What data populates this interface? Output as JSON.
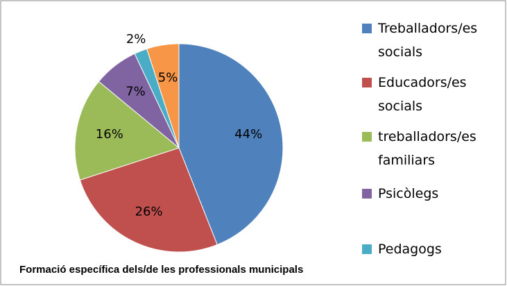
{
  "chart_data": {
    "type": "pie",
    "title": "Formació específica dels/de les professionals municipals",
    "categories": [
      "Treballadors/es socials",
      "Educadors/es socials",
      "treballadors/es familiars",
      "Psicòlegs",
      "Pedagogs",
      null
    ],
    "values": [
      44,
      26,
      16,
      7,
      2,
      5
    ],
    "value_labels": [
      "44%",
      "26%",
      "16%",
      "7%",
      "2%",
      "5%"
    ],
    "colors": [
      "#4f81bd",
      "#c0504d",
      "#9bbb59",
      "#8064a2",
      "#4bacc6",
      "#f79646"
    ]
  }
}
